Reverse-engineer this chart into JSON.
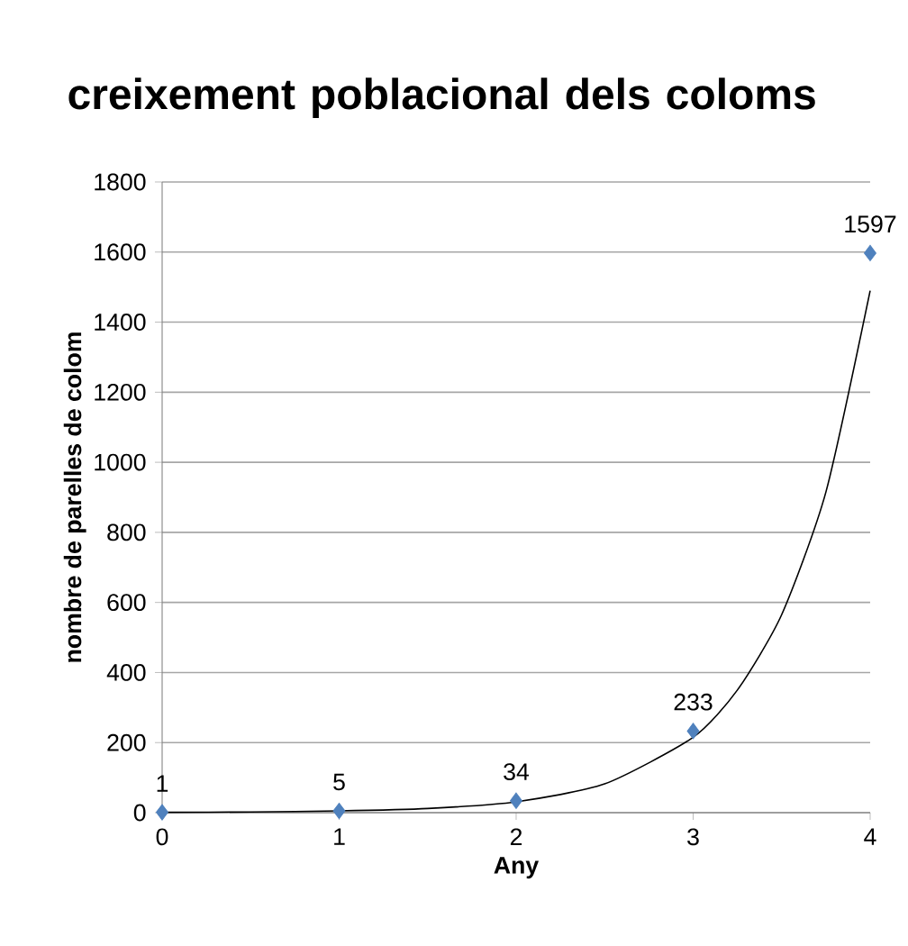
{
  "chart_data": {
    "type": "scatter",
    "title": "creixement poblacional dels coloms",
    "xlabel": "Any",
    "ylabel": "nombre de parelles de colom",
    "xlim": [
      0,
      4
    ],
    "xticks": [
      0,
      1,
      2,
      3,
      4
    ],
    "ylim": [
      0,
      1800
    ],
    "yticks": [
      0,
      200,
      400,
      600,
      800,
      1000,
      1200,
      1400,
      1600,
      1800
    ],
    "grid": "y",
    "series": [
      {
        "marker": "diamond",
        "color": "#4f81bd",
        "x": [
          0,
          1,
          2,
          3,
          4
        ],
        "values": [
          1,
          5,
          34,
          233,
          1597
        ],
        "value_labels": [
          "1",
          "5",
          "34",
          "233",
          "1597"
        ]
      },
      {
        "type": "line",
        "marker": "none",
        "line_style": "solid",
        "color": "#000000",
        "x": [
          0,
          0.5,
          1,
          1.5,
          2,
          2.5,
          3,
          3.25,
          3.5,
          3.75,
          4
        ],
        "values": [
          1,
          2,
          5,
          12,
          31,
          82,
          215,
          350,
          565,
          915,
          1490
        ]
      }
    ]
  }
}
